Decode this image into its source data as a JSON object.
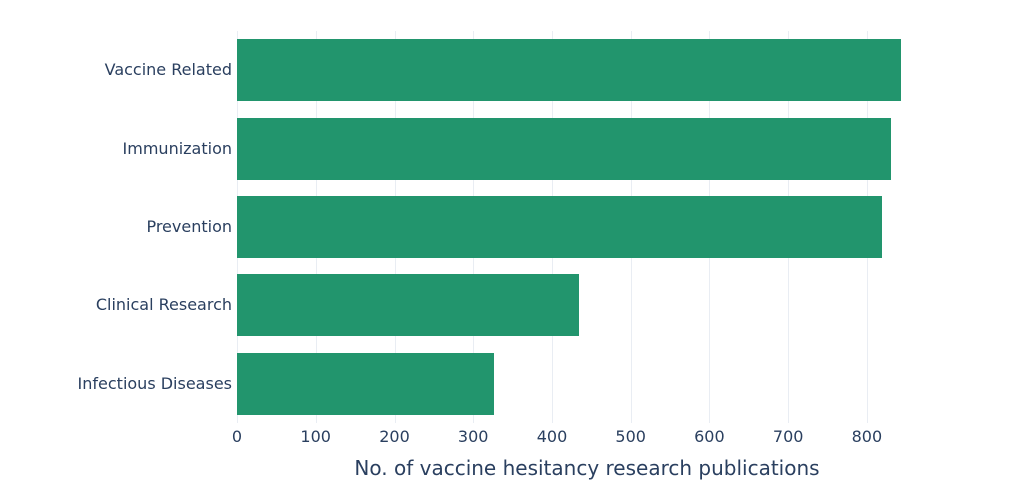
{
  "chart_data": {
    "type": "bar",
    "orientation": "horizontal",
    "title": "",
    "xlabel": "No. of vaccine hesitancy research publications",
    "ylabel": "",
    "categories": [
      "Vaccine Related",
      "Immunization",
      "Prevention",
      "Clinical Research",
      "Infectious Diseases"
    ],
    "values": [
      843,
      831,
      819,
      434,
      326
    ],
    "xlim": [
      0,
      889
    ],
    "xticks": [
      0,
      100,
      200,
      300,
      400,
      500,
      600,
      700,
      800
    ],
    "grid": true,
    "legend": "none",
    "colors": {
      "bar": "#22956d",
      "text": "#2a3f5f",
      "grid": "#e9edf3",
      "background": "#ffffff"
    }
  }
}
